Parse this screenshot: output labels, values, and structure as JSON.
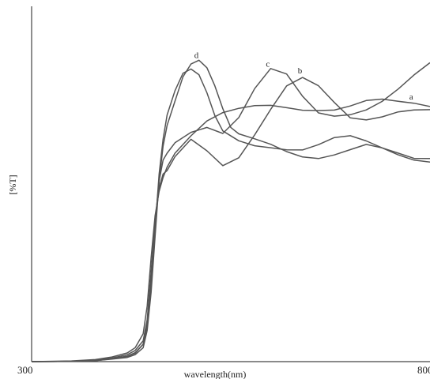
{
  "chart_data": {
    "type": "line",
    "xlabel": "wavelength(nm)",
    "ylabel": "[%T]",
    "xlim": [
      300,
      800
    ],
    "ylim": [
      0,
      100
    ],
    "x_ticks": [
      "300",
      "800"
    ],
    "grid": false,
    "series": [
      {
        "name": "a",
        "x": [
          300,
          350,
          380,
          400,
          420,
          430,
          440,
          445,
          450,
          455,
          460,
          465,
          470,
          480,
          500,
          520,
          540,
          560,
          580,
          600,
          620,
          640,
          660,
          680,
          700,
          720,
          740,
          760,
          780,
          800
        ],
        "y": [
          0,
          0.2,
          0.6,
          1.3,
          2.5,
          4.0,
          8,
          16,
          30,
          42,
          49,
          53,
          56,
          60,
          65,
          69,
          72,
          73.5,
          74,
          73.5,
          72.5,
          72,
          72.5,
          73,
          74,
          75,
          75,
          74.5,
          74.5,
          74
        ]
      },
      {
        "name": "b",
        "x": [
          300,
          350,
          380,
          400,
          420,
          430,
          440,
          445,
          450,
          455,
          460,
          465,
          470,
          480,
          500,
          520,
          540,
          560,
          580,
          600,
          620,
          640,
          660,
          680,
          700,
          720,
          740,
          760,
          780,
          800
        ],
        "y": [
          0,
          0.1,
          0.4,
          1.0,
          2.0,
          3.2,
          6,
          12,
          26,
          40,
          50,
          54,
          55,
          59,
          64,
          61,
          57,
          59,
          65,
          72,
          79,
          82,
          80,
          75,
          70,
          69,
          70,
          72,
          73,
          73
        ]
      },
      {
        "name": "c",
        "x": [
          300,
          350,
          380,
          400,
          420,
          430,
          440,
          445,
          450,
          455,
          460,
          465,
          470,
          480,
          500,
          520,
          540,
          560,
          580,
          600,
          620,
          640,
          660,
          680,
          700,
          720,
          740,
          760,
          780,
          800
        ],
        "y": [
          0,
          0.1,
          0.3,
          0.8,
          1.6,
          2.6,
          5,
          11,
          24,
          40,
          52,
          58,
          60,
          63,
          66,
          68,
          66,
          70,
          78,
          84,
          83,
          77,
          72,
          70.5,
          70.5,
          72,
          75,
          79,
          83,
          86
        ]
      },
      {
        "name": "d",
        "x": [
          300,
          350,
          380,
          400,
          420,
          430,
          440,
          445,
          450,
          455,
          460,
          465,
          470,
          480,
          490,
          500,
          510,
          520,
          530,
          540,
          550,
          560,
          580,
          600,
          620,
          640,
          660,
          680,
          700,
          720,
          740,
          760,
          780,
          800
        ],
        "y": [
          0,
          0.1,
          0.3,
          0.7,
          1.2,
          2.0,
          4,
          9,
          20,
          36,
          52,
          62,
          68,
          75,
          82,
          86,
          86.5,
          84,
          79,
          73,
          68,
          66,
          64,
          62,
          60,
          59,
          59,
          60,
          61,
          62,
          61,
          60,
          59,
          59
        ]
      },
      {
        "x": [
          300,
          350,
          380,
          400,
          420,
          430,
          440,
          445,
          450,
          455,
          460,
          465,
          470,
          480,
          490,
          500,
          510,
          520,
          530,
          540,
          560,
          580,
          600,
          620,
          640,
          660,
          680,
          700,
          720,
          740,
          760,
          780,
          800
        ],
        "y": [
          0,
          0.1,
          0.3,
          0.8,
          1.5,
          2.4,
          5,
          10,
          22,
          38,
          54,
          64,
          71,
          78,
          83,
          84,
          82,
          77,
          71,
          67,
          64,
          62,
          61,
          60.5,
          61,
          63,
          65,
          65,
          63,
          61,
          59.5,
          58.5,
          58
        ]
      }
    ]
  }
}
